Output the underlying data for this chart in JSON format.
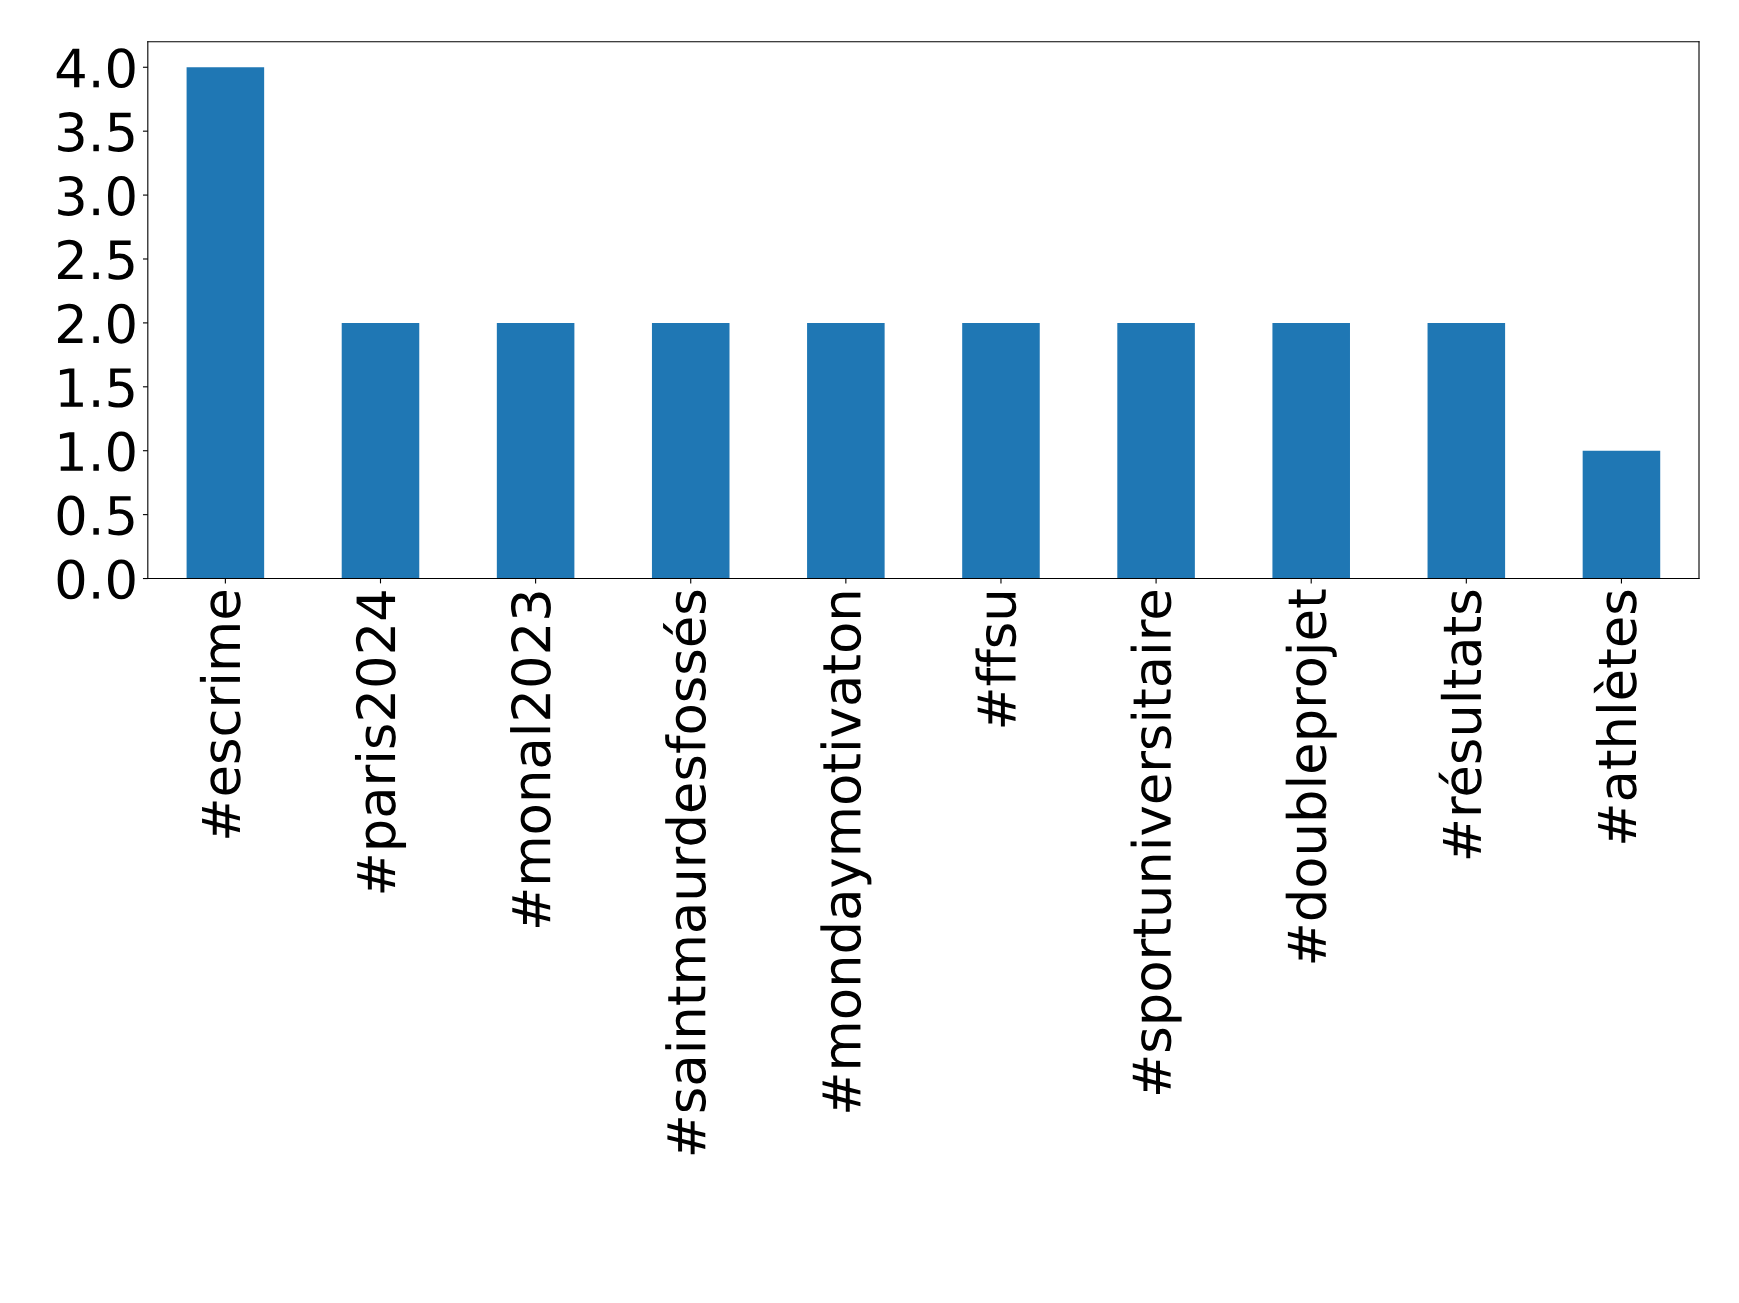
{
  "chart_data": {
    "type": "bar",
    "categories": [
      "#escrime",
      "#paris2024",
      "#monal2023",
      "#saintmaurdesfossés",
      "#mondaymotivaton",
      "#ffsu",
      "#sportuniversitaire",
      "#doubleprojet",
      "#résultats",
      "#athlètes"
    ],
    "values": [
      4,
      2,
      2,
      2,
      2,
      2,
      2,
      2,
      2,
      1
    ],
    "color": "#1f77b4",
    "ylim": [
      0,
      4.2
    ],
    "yticks": [
      {
        "value": 0,
        "label": "0.0"
      },
      {
        "value": 0.5,
        "label": "0.5"
      },
      {
        "value": 1,
        "label": "1.0"
      },
      {
        "value": 1.5,
        "label": "1.5"
      },
      {
        "value": 2,
        "label": "2.0"
      },
      {
        "value": 2.5,
        "label": "2.5"
      },
      {
        "value": 3,
        "label": "3.0"
      },
      {
        "value": 3.5,
        "label": "3.5"
      },
      {
        "value": 4,
        "label": "4.0"
      }
    ],
    "grid": false
  }
}
